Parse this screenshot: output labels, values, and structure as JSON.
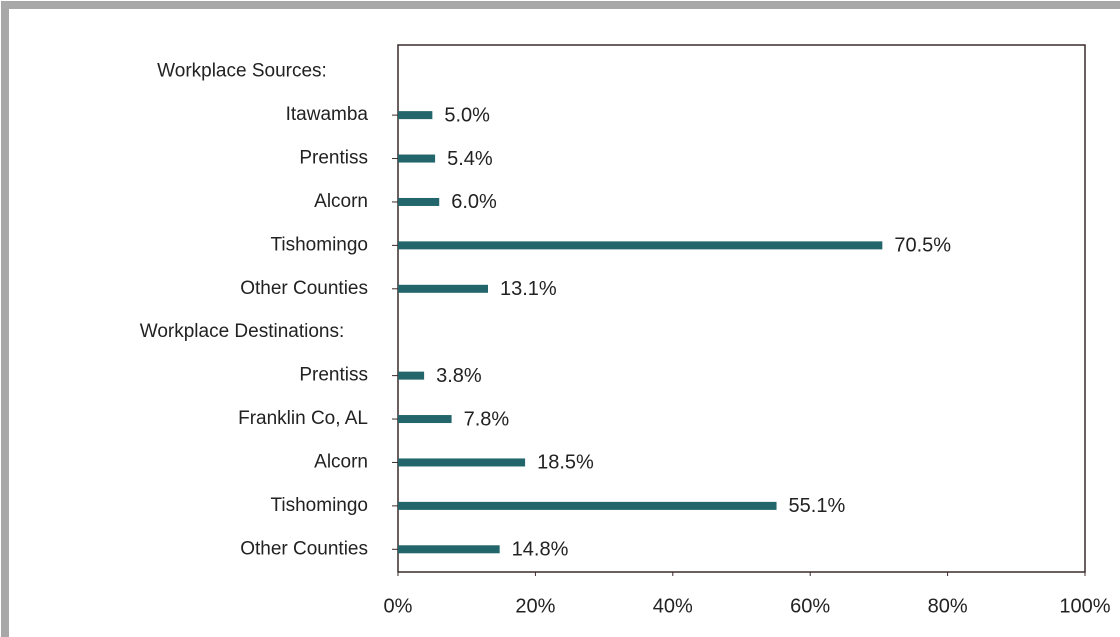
{
  "chart_data": {
    "type": "bar",
    "orientation": "horizontal",
    "categories": [
      "Workplace Sources:",
      "Itawamba",
      "Prentiss",
      "Alcorn",
      "Tishomingo",
      "Other Counties",
      "Workplace Destinations:",
      "Prentiss",
      "Franklin Co, AL",
      "Alcorn",
      "Tishomingo",
      "Other Counties"
    ],
    "values": [
      null,
      5.0,
      5.4,
      6.0,
      70.5,
      13.1,
      null,
      3.8,
      7.8,
      18.5,
      55.1,
      14.8
    ],
    "value_labels": [
      null,
      "5.0%",
      "5.4%",
      "6.0%",
      "70.5%",
      "13.1%",
      null,
      "3.8%",
      "7.8%",
      "18.5%",
      "55.1%",
      "14.8%"
    ],
    "color": "#22666b",
    "xlim": [
      0,
      100
    ],
    "xticks": [
      {
        "value": 0,
        "label": "0%"
      },
      {
        "value": 20,
        "label": "20%"
      },
      {
        "value": 40,
        "label": "40%"
      },
      {
        "value": 60,
        "label": "60%"
      },
      {
        "value": 80,
        "label": "80%"
      },
      {
        "value": 100,
        "label": "100%"
      }
    ],
    "grid": false
  }
}
